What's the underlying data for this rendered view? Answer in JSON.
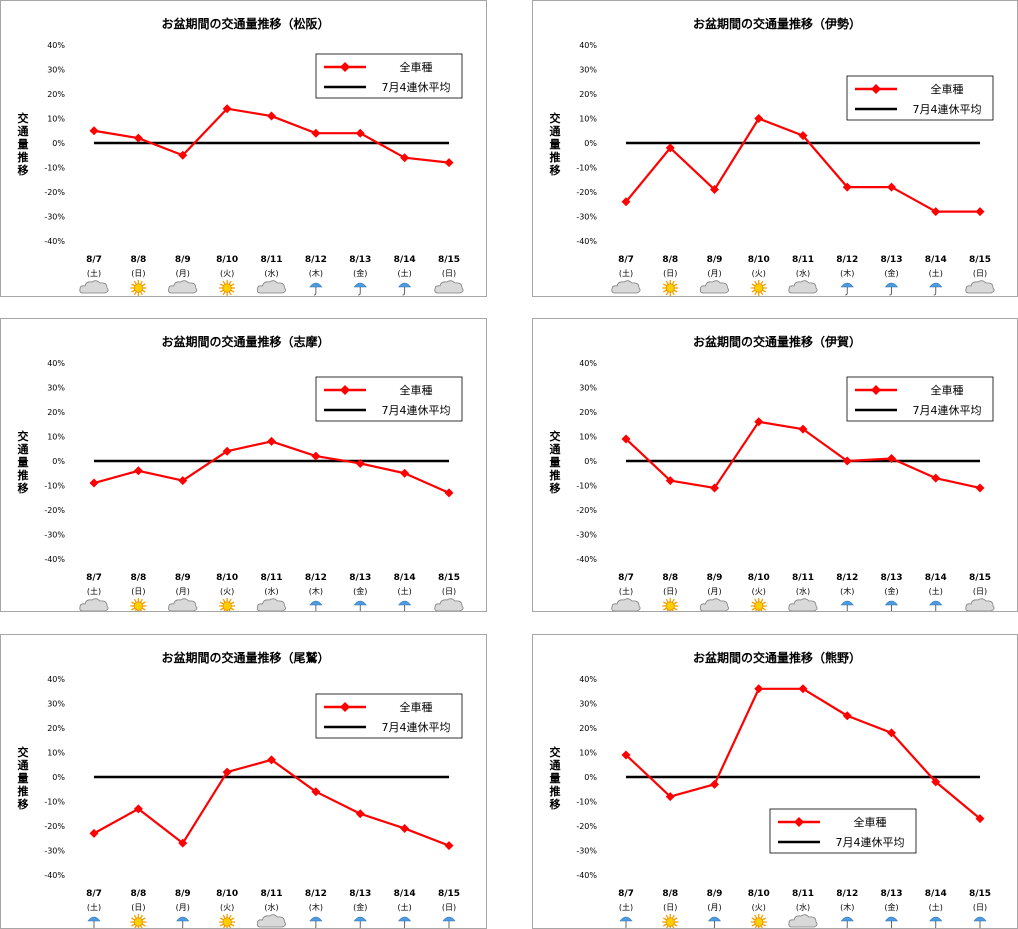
{
  "chart_data": [
    {
      "type": "line",
      "title": "お盆期間の交通量推移（松阪）",
      "ylabel": "交通量推移",
      "categories": [
        "8/7",
        "8/8",
        "8/9",
        "8/10",
        "8/11",
        "8/12",
        "8/13",
        "8/14",
        "8/15"
      ],
      "days": [
        "(土)",
        "(日)",
        "(月)",
        "(火)",
        "(水)",
        "(木)",
        "(金)",
        "(土)",
        "(日)"
      ],
      "weather": [
        "cloud-icon",
        "sun-icon",
        "cloud-icon",
        "sun-icon",
        "cloud-icon",
        "umbrella-icon",
        "umbrella-icon",
        "umbrella-icon",
        "cloud-icon"
      ],
      "yticks": [
        "40%",
        "30%",
        "20%",
        "10%",
        "0%",
        "-10%",
        "-20%",
        "-30%",
        "-40%"
      ],
      "ylim": [
        -40,
        40
      ],
      "legend_position": "top-right",
      "series": [
        {
          "name": "全車種",
          "color": "#ff0000",
          "values": [
            5,
            2,
            -5,
            14,
            11,
            4,
            4,
            -6,
            -8
          ]
        },
        {
          "name": "7月4連休平均",
          "color": "#000000",
          "values": [
            0,
            0,
            0,
            0,
            0,
            0,
            0,
            0,
            0
          ]
        }
      ]
    },
    {
      "type": "line",
      "title": "お盆期間の交通量推移（伊勢）",
      "ylabel": "交通量推移",
      "categories": [
        "8/7",
        "8/8",
        "8/9",
        "8/10",
        "8/11",
        "8/12",
        "8/13",
        "8/14",
        "8/15"
      ],
      "days": [
        "(土)",
        "(日)",
        "(月)",
        "(火)",
        "(水)",
        "(木)",
        "(金)",
        "(土)",
        "(日)"
      ],
      "weather": [
        "cloud-icon",
        "sun-icon",
        "cloud-icon",
        "sun-icon",
        "cloud-icon",
        "umbrella-icon",
        "umbrella-icon",
        "umbrella-icon",
        "cloud-icon"
      ],
      "yticks": [
        "40%",
        "30%",
        "20%",
        "10%",
        "0%",
        "-10%",
        "-20%",
        "-30%",
        "-40%"
      ],
      "ylim": [
        -40,
        40
      ],
      "legend_position": "top-right",
      "series": [
        {
          "name": "全車種",
          "color": "#ff0000",
          "values": [
            -24,
            -2,
            -19,
            10,
            3,
            -18,
            -18,
            -28,
            -28
          ]
        },
        {
          "name": "7月4連休平均",
          "color": "#000000",
          "values": [
            0,
            0,
            0,
            0,
            0,
            0,
            0,
            0,
            0
          ]
        }
      ]
    },
    {
      "type": "line",
      "title": "お盆期間の交通量推移（志摩）",
      "ylabel": "交通量推移",
      "categories": [
        "8/7",
        "8/8",
        "8/9",
        "8/10",
        "8/11",
        "8/12",
        "8/13",
        "8/14",
        "8/15"
      ],
      "days": [
        "(土)",
        "(日)",
        "(月)",
        "(火)",
        "(水)",
        "(木)",
        "(金)",
        "(土)",
        "(日)"
      ],
      "weather": [
        "cloud-icon",
        "sun-icon",
        "cloud-icon",
        "sun-icon",
        "cloud-icon",
        "umbrella-icon",
        "umbrella-icon",
        "umbrella-icon",
        "cloud-icon"
      ],
      "yticks": [
        "40%",
        "30%",
        "20%",
        "10%",
        "0%",
        "-10%",
        "-20%",
        "-30%",
        "-40%"
      ],
      "ylim": [
        -40,
        40
      ],
      "legend_position": "top-right",
      "series": [
        {
          "name": "全車種",
          "color": "#ff0000",
          "values": [
            -9,
            -4,
            -8,
            4,
            8,
            2,
            -1,
            -5,
            -13
          ]
        },
        {
          "name": "7月4連休平均",
          "color": "#000000",
          "values": [
            0,
            0,
            0,
            0,
            0,
            0,
            0,
            0,
            0
          ]
        }
      ]
    },
    {
      "type": "line",
      "title": "お盆期間の交通量推移（伊賀）",
      "ylabel": "交通量推移",
      "categories": [
        "8/7",
        "8/8",
        "8/9",
        "8/10",
        "8/11",
        "8/12",
        "8/13",
        "8/14",
        "8/15"
      ],
      "days": [
        "(土)",
        "(日)",
        "(月)",
        "(火)",
        "(水)",
        "(木)",
        "(金)",
        "(土)",
        "(日)"
      ],
      "weather": [
        "cloud-icon",
        "sun-icon",
        "cloud-icon",
        "sun-icon",
        "cloud-icon",
        "umbrella-icon",
        "umbrella-icon",
        "umbrella-icon",
        "cloud-icon"
      ],
      "yticks": [
        "40%",
        "30%",
        "20%",
        "10%",
        "0%",
        "-10%",
        "-20%",
        "-30%",
        "-40%"
      ],
      "ylim": [
        -40,
        40
      ],
      "legend_position": "top-right",
      "series": [
        {
          "name": "全車種",
          "color": "#ff0000",
          "values": [
            9,
            -8,
            -11,
            16,
            13,
            0,
            1,
            -7,
            -11
          ]
        },
        {
          "name": "7月4連休平均",
          "color": "#000000",
          "values": [
            0,
            0,
            0,
            0,
            0,
            0,
            0,
            0,
            0
          ]
        }
      ]
    },
    {
      "type": "line",
      "title": "お盆期間の交通量推移（尾鷲）",
      "ylabel": "交通量推移",
      "categories": [
        "8/7",
        "8/8",
        "8/9",
        "8/10",
        "8/11",
        "8/12",
        "8/13",
        "8/14",
        "8/15"
      ],
      "days": [
        "(土)",
        "(日)",
        "(月)",
        "(火)",
        "(水)",
        "(木)",
        "(金)",
        "(土)",
        "(日)"
      ],
      "weather": [
        "umbrella-icon",
        "sun-icon",
        "umbrella-icon",
        "sun-icon",
        "cloud-icon",
        "umbrella-icon",
        "umbrella-icon",
        "umbrella-icon",
        "umbrella-icon"
      ],
      "yticks": [
        "40%",
        "30%",
        "20%",
        "10%",
        "0%",
        "-10%",
        "-20%",
        "-30%",
        "-40%"
      ],
      "ylim": [
        -40,
        40
      ],
      "legend_position": "top-right",
      "series": [
        {
          "name": "全車種",
          "color": "#ff0000",
          "values": [
            -23,
            -13,
            -27,
            2,
            7,
            -6,
            -15,
            -21,
            -28
          ]
        },
        {
          "name": "7月4連休平均",
          "color": "#000000",
          "values": [
            0,
            0,
            0,
            0,
            0,
            0,
            0,
            0,
            0
          ]
        }
      ]
    },
    {
      "type": "line",
      "title": "お盆期間の交通量推移（熊野）",
      "ylabel": "交通量推移",
      "categories": [
        "8/7",
        "8/8",
        "8/9",
        "8/10",
        "8/11",
        "8/12",
        "8/13",
        "8/14",
        "8/15"
      ],
      "days": [
        "(土)",
        "(日)",
        "(月)",
        "(火)",
        "(水)",
        "(木)",
        "(金)",
        "(土)",
        "(日)"
      ],
      "weather": [
        "umbrella-icon",
        "sun-icon",
        "umbrella-icon",
        "sun-icon",
        "cloud-icon",
        "umbrella-icon",
        "umbrella-icon",
        "umbrella-icon",
        "umbrella-icon"
      ],
      "yticks": [
        "40%",
        "30%",
        "20%",
        "10%",
        "0%",
        "-10%",
        "-20%",
        "-30%",
        "-40%"
      ],
      "ylim": [
        -40,
        40
      ],
      "legend_position": "bottom-center",
      "series": [
        {
          "name": "全車種",
          "color": "#ff0000",
          "values": [
            9,
            -8,
            -3,
            36,
            36,
            25,
            18,
            -2,
            -17
          ]
        },
        {
          "name": "7月4連休平均",
          "color": "#000000",
          "values": [
            0,
            0,
            0,
            0,
            0,
            0,
            0,
            0,
            0
          ]
        }
      ]
    }
  ]
}
